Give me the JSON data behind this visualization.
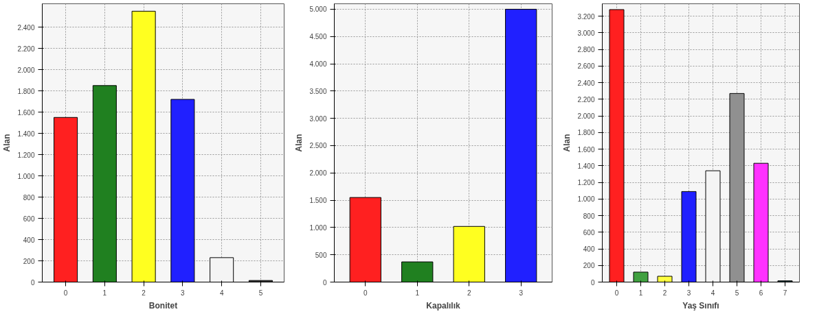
{
  "chart_data": [
    {
      "type": "bar",
      "xlabel": "Bonitet",
      "ylabel": "Alan",
      "categories": [
        "0",
        "1",
        "2",
        "3",
        "4",
        "5"
      ],
      "values": [
        1550,
        1850,
        2550,
        1720,
        230,
        15
      ],
      "colors": [
        "#ff2020",
        "#208020",
        "#ffff20",
        "#2020ff",
        "#f4f4f4",
        "#303030"
      ],
      "ylim": [
        0,
        2620
      ],
      "yticks": [
        0,
        200,
        400,
        600,
        800,
        {
          "value": 1000,
          "label": "1.000"
        },
        {
          "value": 1200,
          "label": "1.200"
        },
        {
          "value": 1400,
          "label": "1.400"
        },
        {
          "value": 1600,
          "label": "1.600"
        },
        {
          "value": 1800,
          "label": "1.800"
        },
        {
          "value": 2000,
          "label": "2.000"
        },
        {
          "value": 2200,
          "label": "2.200"
        },
        {
          "value": 2400,
          "label": "2.400"
        }
      ],
      "grid": true
    },
    {
      "type": "bar",
      "xlabel": "Kapalılık",
      "ylabel": "Alan",
      "categories": [
        "0",
        "1",
        "2",
        "3"
      ],
      "values": [
        1550,
        370,
        1020,
        5000
      ],
      "colors": [
        "#ff2020",
        "#208020",
        "#ffff20",
        "#2020ff"
      ],
      "ylim": [
        0,
        5100
      ],
      "yticks": [
        0,
        500,
        {
          "value": 1000,
          "label": "1.000"
        },
        {
          "value": 1500,
          "label": "1.500"
        },
        {
          "value": 2000,
          "label": "2.000"
        },
        {
          "value": 2500,
          "label": "2.500"
        },
        {
          "value": 3000,
          "label": "3.000"
        },
        {
          "value": 3500,
          "label": "3.500"
        },
        {
          "value": 4000,
          "label": "4.000"
        },
        {
          "value": 4500,
          "label": "4.500"
        },
        {
          "value": 5000,
          "label": "5.000"
        }
      ],
      "grid": true
    },
    {
      "type": "bar",
      "xlabel": "Yaş Sınıfı",
      "ylabel": "Alan",
      "categories": [
        "0",
        "1",
        "2",
        "3",
        "4",
        "5",
        "6",
        "7"
      ],
      "values": [
        3280,
        120,
        70,
        1090,
        1340,
        2270,
        1430,
        15
      ],
      "colors": [
        "#ff2020",
        "#40a040",
        "#ffff40",
        "#2020ff",
        "#f4f4f4",
        "#909090",
        "#ff30ff",
        "#204040"
      ],
      "ylim": [
        0,
        3350
      ],
      "yticks": [
        0,
        200,
        400,
        600,
        800,
        {
          "value": 1000,
          "label": "1.000"
        },
        {
          "value": 1200,
          "label": "1.200"
        },
        {
          "value": 1400,
          "label": "1.400"
        },
        {
          "value": 1600,
          "label": "1.600"
        },
        {
          "value": 1800,
          "label": "1.800"
        },
        {
          "value": 2000,
          "label": "2.000"
        },
        {
          "value": 2200,
          "label": "2.200"
        },
        {
          "value": 2400,
          "label": "2.400"
        },
        {
          "value": 2600,
          "label": "2.600"
        },
        {
          "value": 2800,
          "label": "2.800"
        },
        {
          "value": 3000,
          "label": "3.000"
        },
        {
          "value": 3200,
          "label": "3.200"
        }
      ],
      "grid": true
    }
  ]
}
